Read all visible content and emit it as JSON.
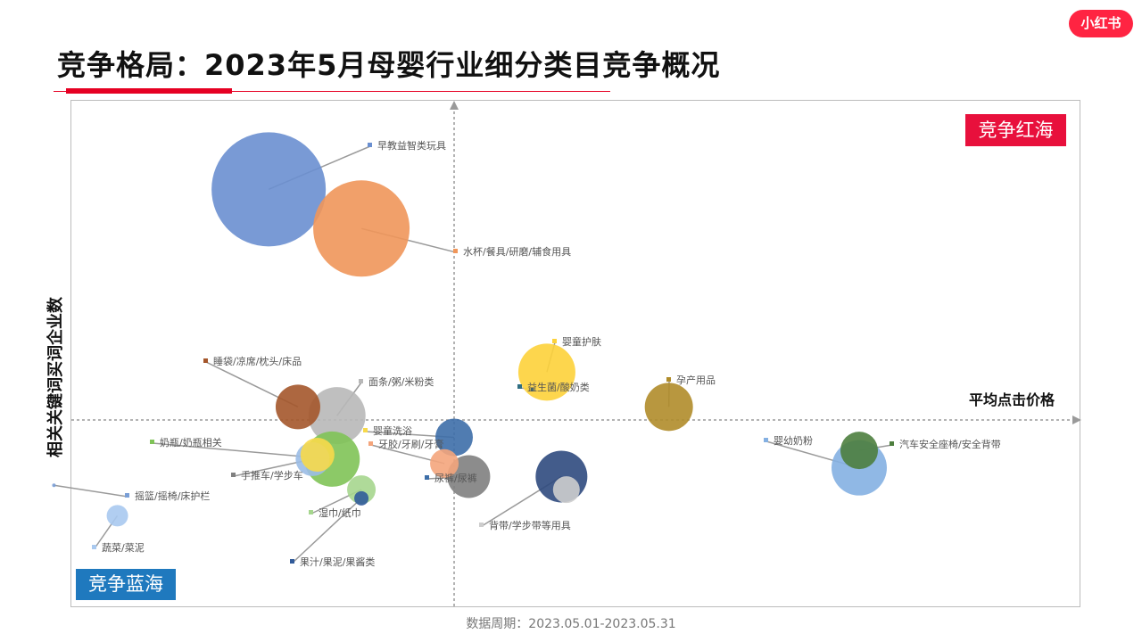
{
  "title": "竞争格局：2023年5月母婴行业细分类目竞争概况",
  "logo": "小红书",
  "quadrant_labels": {
    "red_ocean": "竞争红海",
    "blue_ocean": "竞争蓝海"
  },
  "footer": "数据周期：2023.05.01-2023.05.31",
  "chart_data": {
    "type": "scatter",
    "variant": "bubble",
    "title": "",
    "xlabel": "平均点击价格",
    "ylabel": "相关关键词买词企业数",
    "axes_ticks_visible": false,
    "grid": false,
    "series": [
      {
        "name": "早教益智类玩具",
        "x": -3.8,
        "y": 5.3,
        "size": 64,
        "color": "#6a8fd0"
      },
      {
        "name": "水杯/餐具/研磨/辅食用具",
        "x": -1.9,
        "y": 4.4,
        "size": 54,
        "color": "#f0965a"
      },
      {
        "name": "婴童护肤",
        "x": 1.9,
        "y": 1.1,
        "size": 32,
        "color": "#fdd23a"
      },
      {
        "name": "益生菌/酸奶类",
        "x": 1.6,
        "y": 0.7,
        "size": 2,
        "color": "#2f6e82"
      },
      {
        "name": "孕产用品",
        "x": 4.4,
        "y": 0.3,
        "size": 27,
        "color": "#b08c2a"
      },
      {
        "name": "睡袋/凉席/枕头/床品",
        "x": -3.2,
        "y": 0.3,
        "size": 25,
        "color": "#a4562b"
      },
      {
        "name": "面条/粥/米粉类",
        "x": -2.4,
        "y": 0.1,
        "size": 32,
        "color": "#b8b8b8"
      },
      {
        "name": "婴童洗浴",
        "x": 0.0,
        "y": -0.4,
        "size": 21,
        "color": "#3d6ea8"
      },
      {
        "name": "牙胶/牙刷/牙膏",
        "x": -0.2,
        "y": -1.0,
        "size": 16,
        "color": "#f4a57c"
      },
      {
        "name": "尿裤/尿裤",
        "x": 0.3,
        "y": -1.3,
        "size": 24,
        "color": "#808080"
      },
      {
        "name": "背带/学步带等用具",
        "x": 2.2,
        "y": -1.3,
        "size": 29,
        "color": "#2f4a7e"
      },
      {
        "name": "背带/学步带等用具",
        "x": 2.3,
        "y": -1.6,
        "size": 15,
        "color": "#cdcdcd"
      },
      {
        "name": "婴幼奶粉",
        "x": 8.3,
        "y": -1.1,
        "size": 31,
        "color": "#84b0e2"
      },
      {
        "name": "汽车安全座椅/安全背带",
        "x": 8.3,
        "y": -0.7,
        "size": 21,
        "color": "#4d7e3e"
      },
      {
        "name": "奶瓶/奶瓶相关",
        "x": -2.5,
        "y": -0.9,
        "size": 31,
        "color": "#7fc357"
      },
      {
        "name": "手推车/学步车",
        "x": -2.9,
        "y": -0.9,
        "size": 19,
        "color": "#9bbde6"
      },
      {
        "name": "手推车/学步车",
        "x": -2.8,
        "y": -0.8,
        "size": 19,
        "color": "#f7d94a"
      },
      {
        "name": "湿巾/纸巾",
        "x": -1.9,
        "y": -1.6,
        "size": 16,
        "color": "#a6d68e"
      },
      {
        "name": "果汁/果泥/果酱类",
        "x": -1.9,
        "y": -1.8,
        "size": 8,
        "color": "#315b9a"
      },
      {
        "name": "蔬菜/菜泥",
        "x": -6.9,
        "y": -2.2,
        "size": 12,
        "color": "#a9c9ef"
      },
      {
        "name": "摇篮/摇椅/床护栏",
        "x": -8.2,
        "y": -1.5,
        "size": 2,
        "color": "#7a9fd6"
      }
    ]
  }
}
